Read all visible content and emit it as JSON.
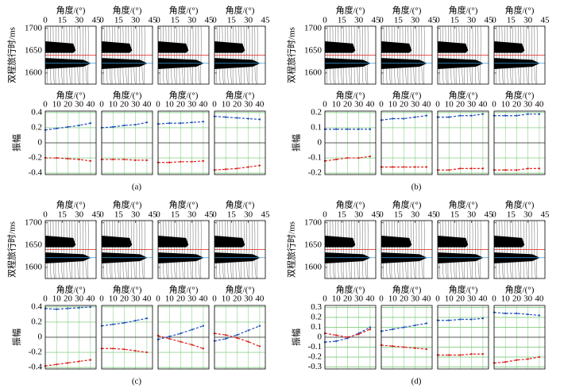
{
  "chart_data": [
    {
      "type": "avo",
      "label": "(a)",
      "gather": {
        "xlabel": "角度/(°)",
        "ylabel": "双程旅行时/ms",
        "xlim": [
          0,
          45
        ],
        "xticks": [
          0,
          15,
          30,
          45
        ],
        "ylim": [
          1575,
          1705
        ],
        "yticks": [
          1600,
          1650,
          1700
        ]
      },
      "amplitude": {
        "xlabel": "角度/(°)",
        "ylabel": "振幅",
        "xlim": [
          0,
          45
        ],
        "xticks": [
          0,
          10,
          20,
          30,
          40
        ],
        "ylim": [
          -0.42,
          0.42
        ],
        "yticks": [
          -0.4,
          -0.2,
          0,
          0.2,
          0.4
        ],
        "grid": true,
        "x": [
          0,
          10,
          20,
          30,
          40
        ],
        "panels": [
          {
            "series": [
              {
                "color": "#1f4fbf",
                "values": [
                  0.17,
                  0.19,
                  0.21,
                  0.23,
                  0.26
                ]
              },
              {
                "color": "#e0201b",
                "values": [
                  -0.2,
                  -0.2,
                  -0.21,
                  -0.22,
                  -0.24
                ]
              }
            ]
          },
          {
            "series": [
              {
                "color": "#1f4fbf",
                "values": [
                  0.2,
                  0.21,
                  0.23,
                  0.24,
                  0.27
                ]
              },
              {
                "color": "#e0201b",
                "values": [
                  -0.22,
                  -0.22,
                  -0.22,
                  -0.23,
                  -0.23
                ]
              }
            ]
          },
          {
            "series": [
              {
                "color": "#1f4fbf",
                "values": [
                  0.25,
                  0.26,
                  0.26,
                  0.27,
                  0.28
                ]
              },
              {
                "color": "#e0201b",
                "values": [
                  -0.26,
                  -0.26,
                  -0.25,
                  -0.25,
                  -0.24
                ]
              }
            ]
          },
          {
            "series": [
              {
                "color": "#1f4fbf",
                "values": [
                  0.35,
                  0.34,
                  0.33,
                  0.32,
                  0.31
                ]
              },
              {
                "color": "#e0201b",
                "values": [
                  -0.36,
                  -0.35,
                  -0.34,
                  -0.32,
                  -0.3
                ]
              }
            ]
          }
        ]
      }
    },
    {
      "type": "avo",
      "label": "(b)",
      "gather": {
        "xlabel": "角度/(°)",
        "ylabel": "双程旅行时/ms",
        "xlim": [
          0,
          45
        ],
        "xticks": [
          0,
          15,
          30,
          45
        ],
        "ylim": [
          1575,
          1705
        ],
        "yticks": [
          1600,
          1650,
          1700
        ]
      },
      "amplitude": {
        "xlabel": "角度/(°)",
        "ylabel": "振幅",
        "xlim": [
          0,
          45
        ],
        "xticks": [
          0,
          10,
          20,
          30,
          40
        ],
        "ylim": [
          -0.21,
          0.21
        ],
        "yticks": [
          -0.2,
          -0.1,
          0,
          0.1,
          0.2
        ],
        "grid": true,
        "x": [
          0,
          10,
          20,
          30,
          40
        ],
        "panels": [
          {
            "series": [
              {
                "color": "#1f4fbf",
                "values": [
                  0.09,
                  0.09,
                  0.09,
                  0.09,
                  0.09
                ]
              },
              {
                "color": "#e0201b",
                "values": [
                  -0.12,
                  -0.11,
                  -0.1,
                  -0.1,
                  -0.09
                ]
              }
            ]
          },
          {
            "series": [
              {
                "color": "#1f4fbf",
                "values": [
                  0.15,
                  0.16,
                  0.16,
                  0.17,
                  0.18
                ]
              },
              {
                "color": "#e0201b",
                "values": [
                  -0.16,
                  -0.16,
                  -0.16,
                  -0.16,
                  -0.16
                ]
              }
            ]
          },
          {
            "series": [
              {
                "color": "#1f4fbf",
                "values": [
                  0.17,
                  0.17,
                  0.18,
                  0.18,
                  0.19
                ]
              },
              {
                "color": "#e0201b",
                "values": [
                  -0.18,
                  -0.18,
                  -0.17,
                  -0.17,
                  -0.17
                ]
              }
            ]
          },
          {
            "series": [
              {
                "color": "#1f4fbf",
                "values": [
                  0.18,
                  0.18,
                  0.18,
                  0.19,
                  0.19
                ]
              },
              {
                "color": "#e0201b",
                "values": [
                  -0.18,
                  -0.18,
                  -0.18,
                  -0.17,
                  -0.17
                ]
              }
            ]
          }
        ]
      }
    },
    {
      "type": "avo",
      "label": "(c)",
      "gather": {
        "xlabel": "角度/(°)",
        "ylabel": "双程旅行时/ms",
        "xlim": [
          0,
          45
        ],
        "xticks": [
          0,
          15,
          30,
          45
        ],
        "ylim": [
          1575,
          1705
        ],
        "yticks": [
          1600,
          1650,
          1700
        ]
      },
      "amplitude": {
        "xlabel": "角度/(°)",
        "ylabel": "振幅",
        "xlim": [
          0,
          45
        ],
        "xticks": [
          0,
          10,
          20,
          30,
          40
        ],
        "ylim": [
          -0.42,
          0.42
        ],
        "yticks": [
          -0.4,
          -0.2,
          0,
          0.2,
          0.4
        ],
        "grid": true,
        "x": [
          0,
          10,
          20,
          30,
          40
        ],
        "panels": [
          {
            "series": [
              {
                "color": "#1f4fbf",
                "values": [
                  0.38,
                  0.37,
                  0.38,
                  0.39,
                  0.4
                ]
              },
              {
                "color": "#e0201b",
                "values": [
                  -0.38,
                  -0.36,
                  -0.34,
                  -0.32,
                  -0.3
                ]
              }
            ]
          },
          {
            "series": [
              {
                "color": "#1f4fbf",
                "values": [
                  0.15,
                  0.17,
                  0.19,
                  0.22,
                  0.25
                ]
              },
              {
                "color": "#e0201b",
                "values": [
                  -0.15,
                  -0.15,
                  -0.16,
                  -0.18,
                  -0.2
                ]
              }
            ]
          },
          {
            "series": [
              {
                "color": "#1f4fbf",
                "values": [
                  -0.03,
                  0.01,
                  0.05,
                  0.1,
                  0.15
                ]
              },
              {
                "color": "#e0201b",
                "values": [
                  0.02,
                  -0.02,
                  -0.06,
                  -0.1,
                  -0.15
                ]
              }
            ]
          },
          {
            "series": [
              {
                "color": "#1f4fbf",
                "values": [
                  -0.05,
                  -0.02,
                  0.03,
                  0.09,
                  0.15
                ]
              },
              {
                "color": "#e0201b",
                "values": [
                  0.05,
                  0.03,
                  -0.01,
                  -0.06,
                  -0.12
                ]
              }
            ]
          }
        ]
      }
    },
    {
      "type": "avo",
      "label": "(d)",
      "gather": {
        "xlabel": "角度/(°)",
        "ylabel": "双程旅行时/ms",
        "xlim": [
          0,
          45
        ],
        "xticks": [
          0,
          15,
          30,
          45
        ],
        "ylim": [
          1575,
          1705
        ],
        "yticks": [
          1600,
          1650,
          1700
        ]
      },
      "amplitude": {
        "xlabel": "角度/(°)",
        "ylabel": "振幅",
        "xlim": [
          0,
          45
        ],
        "xticks": [
          0,
          10,
          20,
          30,
          40
        ],
        "ylim": [
          -0.32,
          0.32
        ],
        "yticks": [
          -0.3,
          -0.2,
          -0.1,
          0,
          0.1,
          0.2,
          0.3
        ],
        "grid": true,
        "x": [
          0,
          10,
          20,
          30,
          40
        ],
        "panels": [
          {
            "series": [
              {
                "color": "#1f4fbf",
                "values": [
                  -0.05,
                  -0.04,
                  -0.01,
                  0.04,
                  0.1
                ]
              },
              {
                "color": "#e0201b",
                "values": [
                  0.04,
                  0.02,
                  0.0,
                  0.03,
                  0.08
                ]
              }
            ]
          },
          {
            "series": [
              {
                "color": "#1f4fbf",
                "values": [
                  0.06,
                  0.08,
                  0.1,
                  0.12,
                  0.14
                ]
              },
              {
                "color": "#e0201b",
                "values": [
                  -0.08,
                  -0.09,
                  -0.1,
                  -0.11,
                  -0.12
                ]
              }
            ]
          },
          {
            "series": [
              {
                "color": "#1f4fbf",
                "values": [
                  0.17,
                  0.17,
                  0.18,
                  0.18,
                  0.19
                ]
              },
              {
                "color": "#e0201b",
                "values": [
                  -0.18,
                  -0.18,
                  -0.18,
                  -0.17,
                  -0.17
                ]
              }
            ]
          },
          {
            "series": [
              {
                "color": "#1f4fbf",
                "values": [
                  0.25,
                  0.24,
                  0.24,
                  0.23,
                  0.22
                ]
              },
              {
                "color": "#e0201b",
                "values": [
                  -0.26,
                  -0.25,
                  -0.23,
                  -0.22,
                  -0.2
                ]
              }
            ]
          }
        ]
      }
    }
  ]
}
